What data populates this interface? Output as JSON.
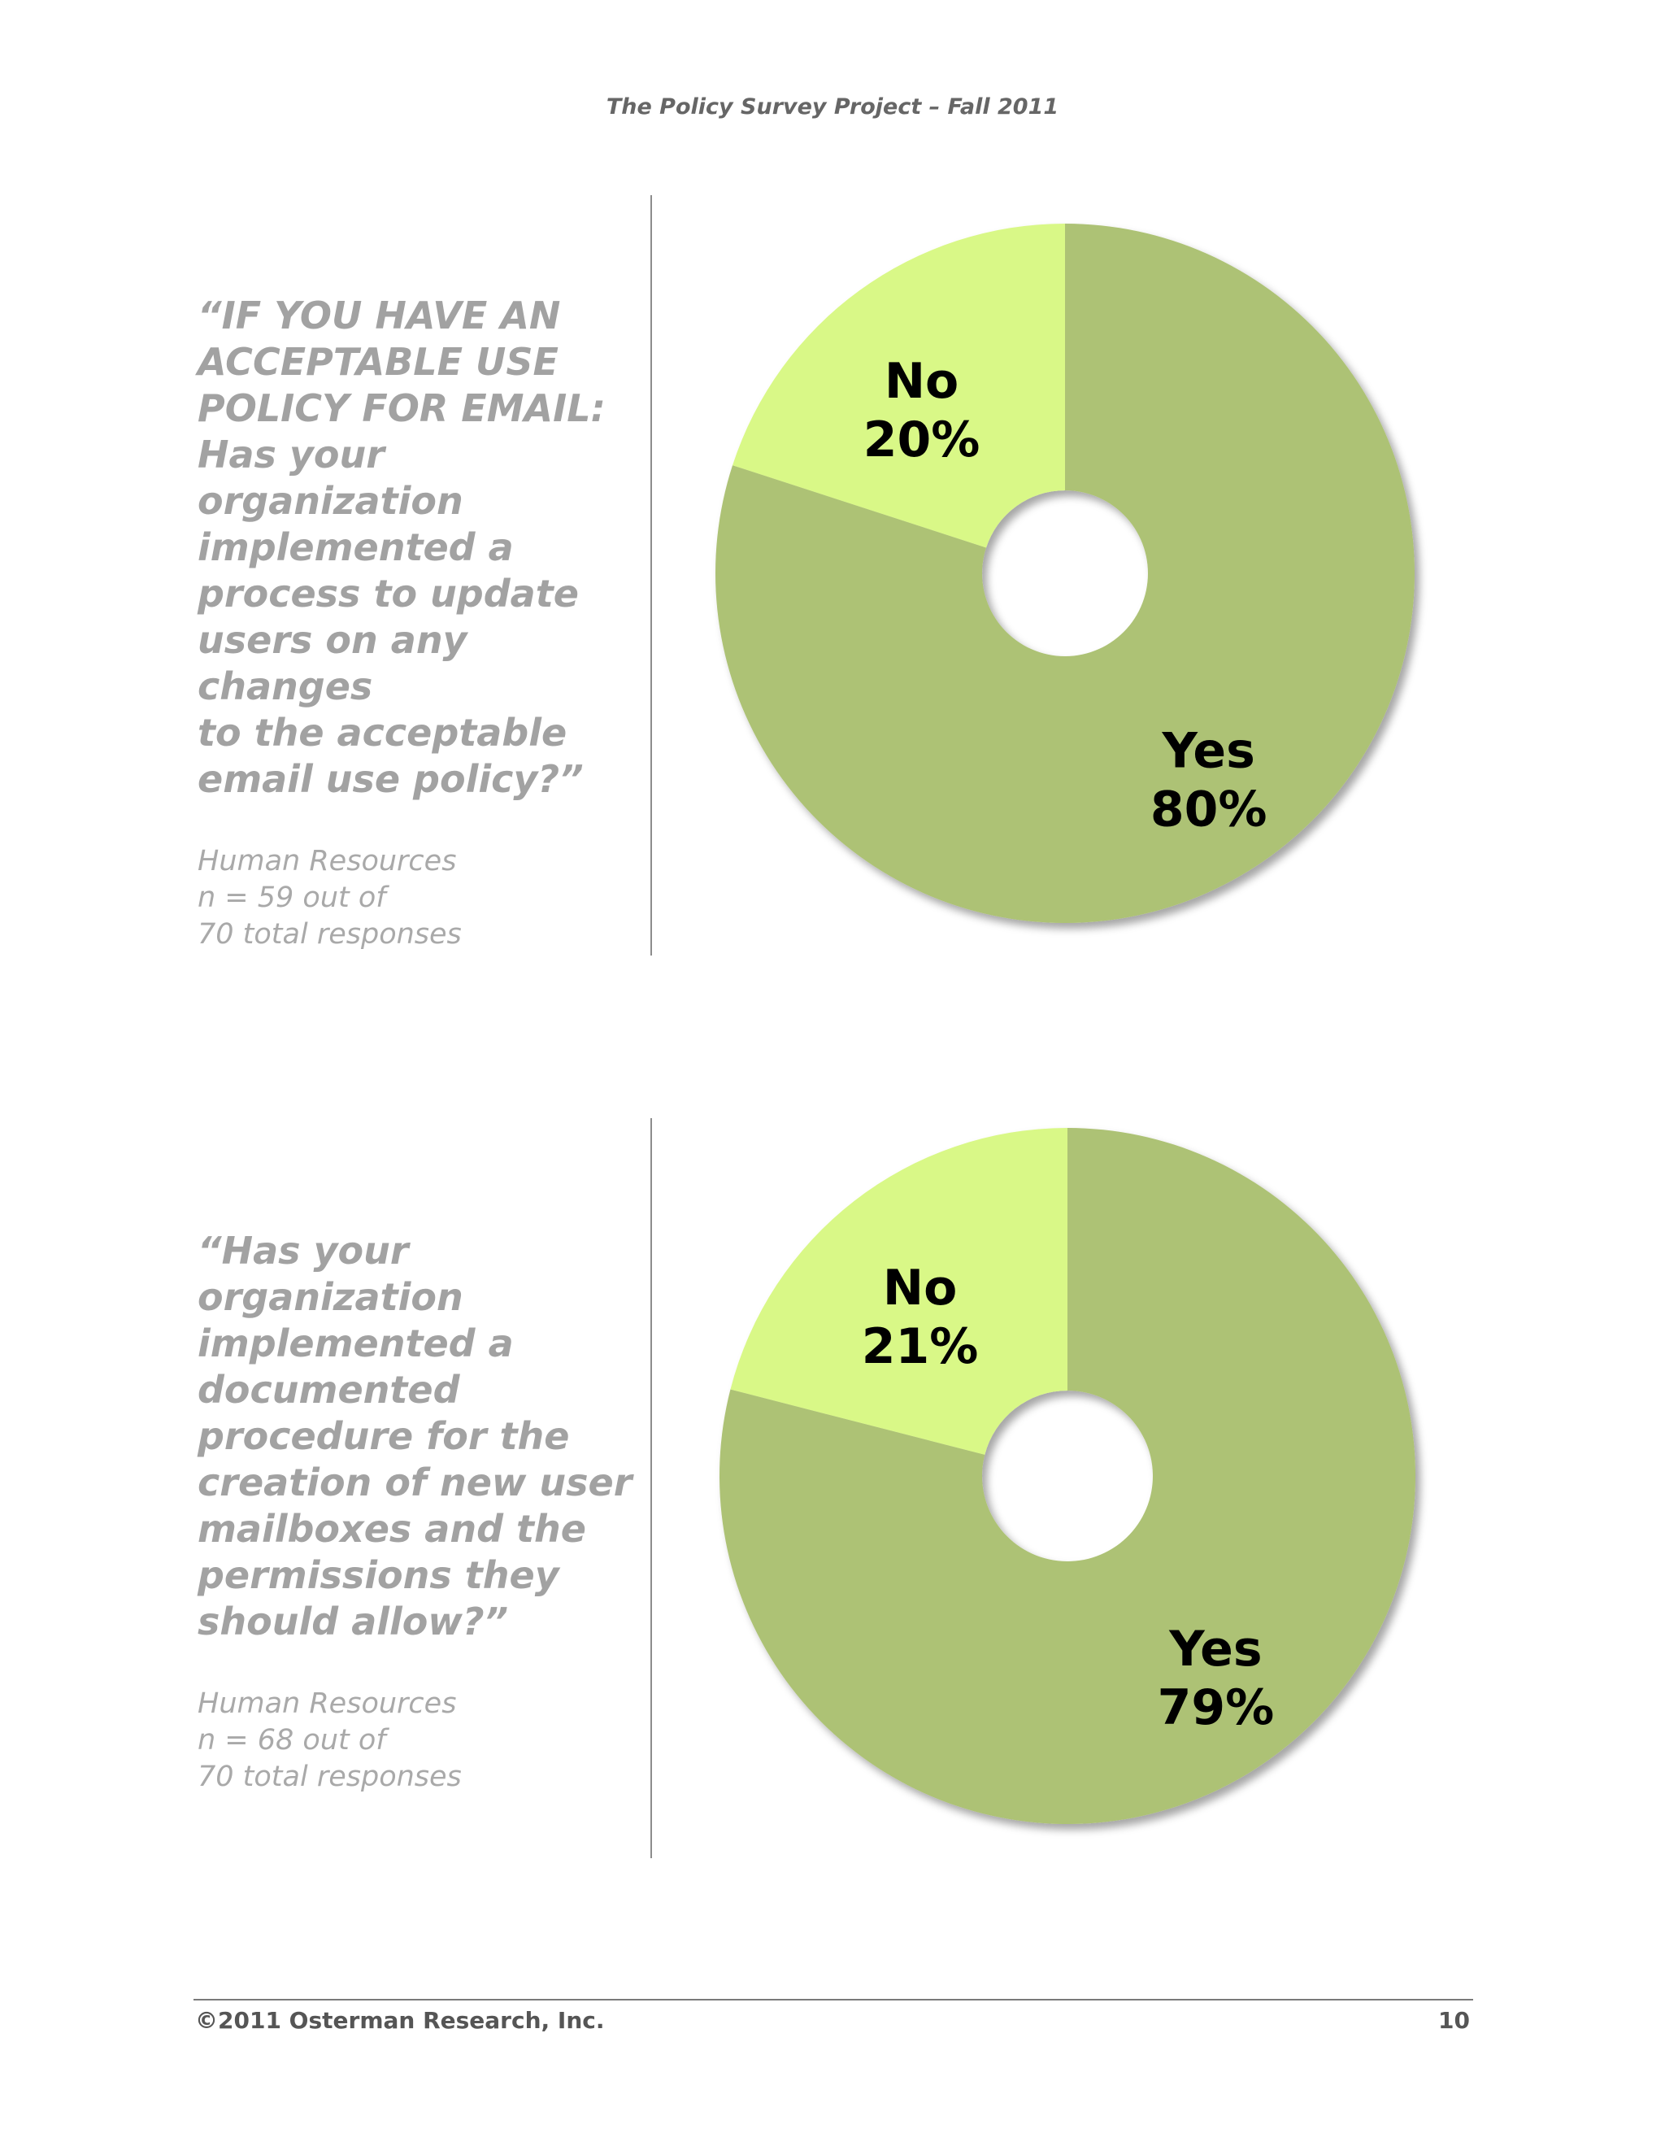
{
  "header": {
    "title": "The Policy Survey Project – Fall 2011"
  },
  "panels": [
    {
      "question": "“IF YOU HAVE AN\nACCEPTABLE USE\nPOLICY FOR EMAIL:\nHas your organization\nimplemented a\nprocess to update\nusers on any changes\nto the acceptable\nemail use policy?”",
      "meta": [
        "Human Resources",
        "n = 59 out of",
        "70 total responses"
      ]
    },
    {
      "question": "“Has your organization\nimplemented a\ndocumented\nprocedure for the\ncreation of new user\nmailboxes and the\npermissions they\nshould allow?”",
      "meta": [
        "Human Resources",
        "n = 68 out of",
        "70 total responses"
      ]
    }
  ],
  "chart_data": [
    {
      "type": "pie",
      "donut": true,
      "categories": [
        "Yes",
        "No"
      ],
      "values": [
        80,
        20
      ],
      "labels": [
        {
          "category": "Yes",
          "value": "80%"
        },
        {
          "category": "No",
          "value": "20%"
        }
      ],
      "colors": {
        "Yes": "#adc274",
        "No": "#d9f887"
      }
    },
    {
      "type": "pie",
      "donut": true,
      "categories": [
        "Yes",
        "No"
      ],
      "values": [
        79,
        21
      ],
      "labels": [
        {
          "category": "Yes",
          "value": "79%"
        },
        {
          "category": "No",
          "value": "21%"
        }
      ],
      "colors": {
        "Yes": "#adc274",
        "No": "#d9f887"
      }
    }
  ],
  "footer": {
    "copyright": "©2011 Osterman Research, Inc.",
    "page_number": "10"
  }
}
